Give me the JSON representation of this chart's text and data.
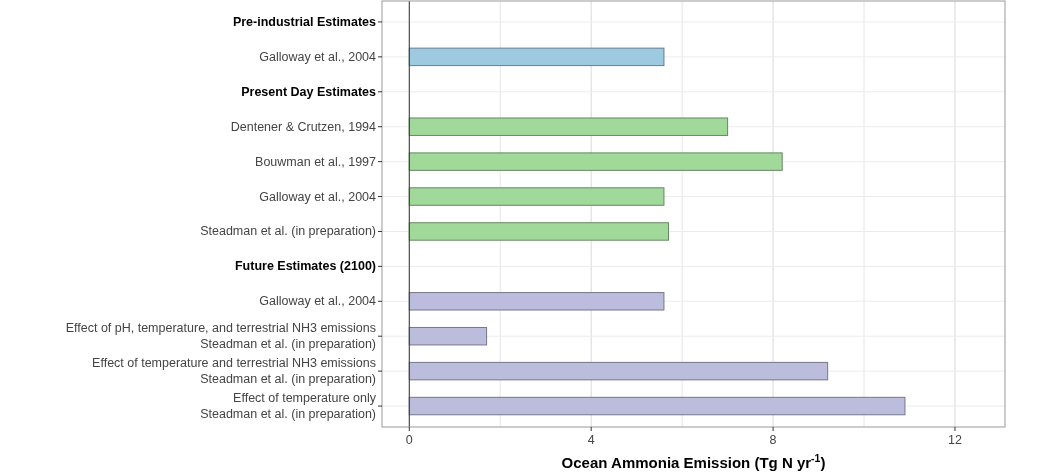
{
  "chart_data": {
    "type": "bar",
    "orientation": "horizontal",
    "xlabel": "Ocean Ammonia Emission (Tg N yr$^{-1}$)",
    "categories": [
      "Pre-industrial Estimates",
      "Galloway et al., 2004",
      "Present Day Estimates",
      "Dentener & Crutzen, 1994",
      "Bouwman et al., 1997",
      "Galloway et al., 2004",
      "Steadman et al. (in preparation)",
      "Future Estimates (2100)",
      "Galloway et al., 2004",
      "Effect of pH, temperature, and terrestrial NH3 emissions\nSteadman et al. (in preparation)",
      "Effect of temperature and terrestrial NH3 emissions\nSteadman et al. (in preparation)",
      "Effect of temperature only\nSteadman et al. (in preparation)"
    ],
    "series": [
      {
        "color": "#9ecae1",
        "values": [
          null,
          5.6,
          null,
          null,
          null,
          null,
          null,
          null,
          null,
          null,
          null,
          null
        ]
      },
      {
        "color": "#a1d99b",
        "values": [
          null,
          null,
          null,
          7.0,
          8.2,
          5.6,
          5.7,
          null,
          null,
          null,
          null,
          null
        ]
      },
      {
        "color": "#bcbddc",
        "values": [
          null,
          null,
          null,
          null,
          null,
          null,
          null,
          null,
          5.6,
          1.7,
          9.2,
          10.9
        ]
      }
    ],
    "xlim": [
      -0.6,
      13.1
    ],
    "xticks": [
      0,
      {
        "value": 2,
        "label": null
      },
      4,
      {
        "value": 6,
        "label": null
      },
      8,
      {
        "value": 10,
        "label": null
      },
      12
    ],
    "grid": true
  }
}
